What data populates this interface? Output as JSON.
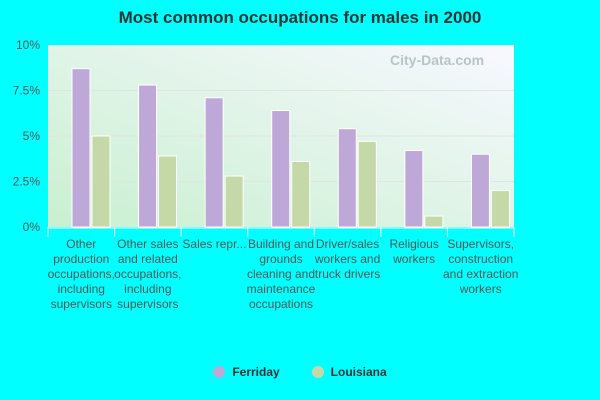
{
  "chart_data": {
    "type": "bar",
    "title": "Most common occupations for males in 2000",
    "categories": [
      "Other production occupations, including supervisors",
      "Other sales and related occupations, including supervisors",
      "Sales repr...",
      "Building and grounds cleaning and maintenance occupations",
      "Driver/sales workers and truck drivers",
      "Religious workers",
      "Supervisors, construction and extraction workers"
    ],
    "series": [
      {
        "name": "Ferriday",
        "color": "#bea8d8",
        "values": [
          8.7,
          7.8,
          7.1,
          6.4,
          5.4,
          4.2,
          4.0
        ]
      },
      {
        "name": "Louisiana",
        "color": "#c4d8a8",
        "values": [
          5.0,
          3.9,
          2.8,
          3.6,
          4.7,
          0.6,
          2.0
        ]
      }
    ],
    "ylim": [
      0,
      10
    ],
    "yticks": [
      "0%",
      "2.5%",
      "5%",
      "7.5%",
      "10%"
    ],
    "grid": true,
    "legend": "bottom"
  },
  "watermark": "City-Data.com"
}
